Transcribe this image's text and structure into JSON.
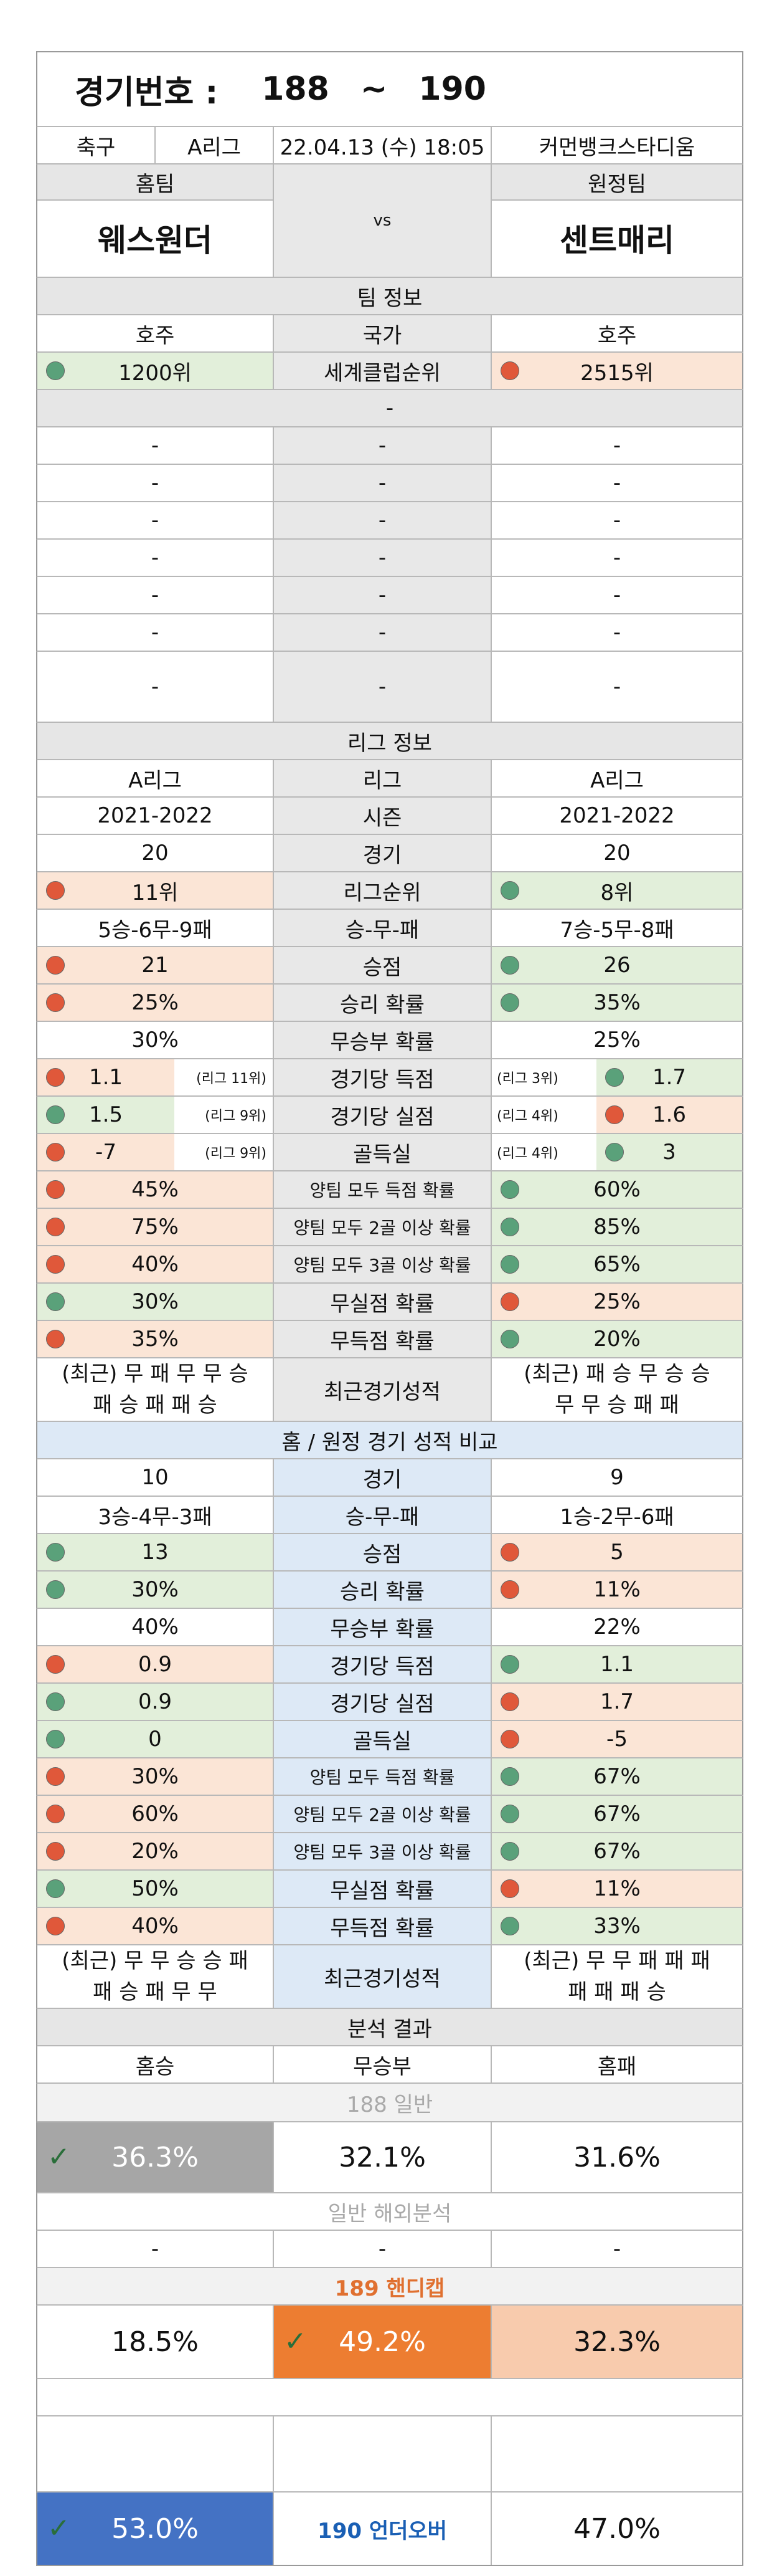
{
  "header": {
    "title": "경기번호 :",
    "from": "188",
    "sep": "~",
    "to": "190",
    "sport": "축구",
    "league": "A리그",
    "datetime": "22.04.13 (수) 18:05",
    "venue": "커먼뱅크스타디움"
  },
  "teams": {
    "home_label": "홈팀",
    "away_label": "원정팀",
    "vs": "vs",
    "home_name": "웨스원더",
    "away_name": "센트매리"
  },
  "team_info": {
    "section": "팀 정보",
    "home_country": "호주",
    "country_label": "국가",
    "away_country": "호주",
    "home_rank": "1200위",
    "rank_label": "세계클럽순위",
    "away_rank": "2515위",
    "dash": "-"
  },
  "league_info": {
    "section": "리그 정보",
    "home_league": "A리그",
    "league_label": "리그",
    "away_league": "A리그",
    "home_season": "2021-2022",
    "season_label": "시즌",
    "away_season": "2021-2022",
    "rows": [
      {
        "label": "경기",
        "home": "20",
        "away": "20",
        "hc": "",
        "ac": ""
      },
      {
        "label": "리그순위",
        "home": "11위",
        "away": "8위",
        "hc": "r",
        "ac": "g"
      },
      {
        "label": "승-무-패",
        "home": "5승-6무-9패",
        "away": "7승-5무-8패",
        "hc": "",
        "ac": ""
      },
      {
        "label": "승점",
        "home": "21",
        "away": "26",
        "hc": "r",
        "ac": "g"
      },
      {
        "label": "승리 확률",
        "home": "25%",
        "away": "35%",
        "hc": "r",
        "ac": "g"
      },
      {
        "label": "무승부 확률",
        "home": "30%",
        "away": "25%",
        "hc": "",
        "ac": ""
      }
    ],
    "split_rows": [
      {
        "label": "경기당 득점",
        "home": "1.1",
        "home_rank": "(리그 11위)",
        "away": "1.7",
        "away_rank": "(리그 3위)",
        "hc": "r",
        "ac": "g"
      },
      {
        "label": "경기당 실점",
        "home": "1.5",
        "home_rank": "(리그 9위)",
        "away": "1.6",
        "away_rank": "(리그 4위)",
        "hc": "g",
        "ac": "r"
      },
      {
        "label": "골득실",
        "home": "-7",
        "home_rank": "(리그 9위)",
        "away": "3",
        "away_rank": "(리그 4위)",
        "hc": "r",
        "ac": "g"
      }
    ],
    "rows2": [
      {
        "label": "양팀 모두 득점 확률",
        "home": "45%",
        "away": "60%",
        "hc": "r",
        "ac": "g"
      },
      {
        "label": "양팀 모두 2골 이상 확률",
        "home": "75%",
        "away": "85%",
        "hc": "r",
        "ac": "g"
      },
      {
        "label": "양팀 모두 3골 이상 확률",
        "home": "40%",
        "away": "65%",
        "hc": "r",
        "ac": "g"
      },
      {
        "label": "무실점 확률",
        "home": "30%",
        "away": "25%",
        "hc": "g",
        "ac": "r"
      },
      {
        "label": "무득점 확률",
        "home": "35%",
        "away": "20%",
        "hc": "r",
        "ac": "g"
      }
    ],
    "recent_label": "최근경기성적",
    "home_recent_1": "(최근) 무 패 무 무 승",
    "home_recent_2": "패 승 패 패 승",
    "away_recent_1": "(최근) 패 승 무 승 승",
    "away_recent_2": "무 무 승 패 패"
  },
  "venue_compare": {
    "section": "홈 / 원정 경기 성적 비교",
    "rows": [
      {
        "label": "경기",
        "home": "10",
        "away": "9",
        "hc": "",
        "ac": ""
      },
      {
        "label": "승-무-패",
        "home": "3승-4무-3패",
        "away": "1승-2무-6패",
        "hc": "",
        "ac": ""
      },
      {
        "label": "승점",
        "home": "13",
        "away": "5",
        "hc": "g",
        "ac": "r"
      },
      {
        "label": "승리 확률",
        "home": "30%",
        "away": "11%",
        "hc": "g",
        "ac": "r"
      },
      {
        "label": "무승부 확률",
        "home": "40%",
        "away": "22%",
        "hc": "",
        "ac": ""
      },
      {
        "label": "경기당 득점",
        "home": "0.9",
        "away": "1.1",
        "hc": "r",
        "ac": "g"
      },
      {
        "label": "경기당 실점",
        "home": "0.9",
        "away": "1.7",
        "hc": "g",
        "ac": "r"
      },
      {
        "label": "골득실",
        "home": "0",
        "away": "-5",
        "hc": "g",
        "ac": "r"
      },
      {
        "label": "양팀 모두 득점 확률",
        "home": "30%",
        "away": "67%",
        "hc": "r",
        "ac": "g"
      },
      {
        "label": "양팀 모두 2골 이상 확률",
        "home": "60%",
        "away": "67%",
        "hc": "r",
        "ac": "g"
      },
      {
        "label": "양팀 모두 3골 이상 확률",
        "home": "20%",
        "away": "67%",
        "hc": "r",
        "ac": "g"
      },
      {
        "label": "무실점 확률",
        "home": "50%",
        "away": "11%",
        "hc": "g",
        "ac": "r"
      },
      {
        "label": "무득점 확률",
        "home": "40%",
        "away": "33%",
        "hc": "r",
        "ac": "g"
      }
    ],
    "recent_label": "최근경기성적",
    "home_recent_1": "(최근) 무 무 승 승 패",
    "home_recent_2": "패 승 패 무 무",
    "away_recent_1": "(최근) 무 무 패 패 패",
    "away_recent_2": "패 패 패 승"
  },
  "analysis": {
    "section": "분석 결과",
    "home_win": "홈승",
    "draw": "무승부",
    "home_loss": "홈패",
    "general_label": "188 일반",
    "general_home": "36.3%",
    "general_draw": "32.1%",
    "general_away": "31.6%",
    "overseas_label": "일반 해외분석",
    "handicap_label": "189 핸디캡",
    "handicap_home": "18.5%",
    "handicap_draw": "49.2%",
    "handicap_away": "32.3%",
    "uo_under": "53.0%",
    "uo_label": "190 언더오버",
    "uo_over": "47.0%"
  },
  "colors": {
    "positive_bg": "#e2efda",
    "negative_bg": "#fbe5d6",
    "green_dot": "#5aa17a",
    "red_dot": "#e0583a",
    "general_pick": "#a6a6a6",
    "handicap_pick": "#ed7d31",
    "handicap_away_bg": "#f8cbad",
    "uo_pick": "#4472c4",
    "compare_mid": "#dde9f6"
  }
}
